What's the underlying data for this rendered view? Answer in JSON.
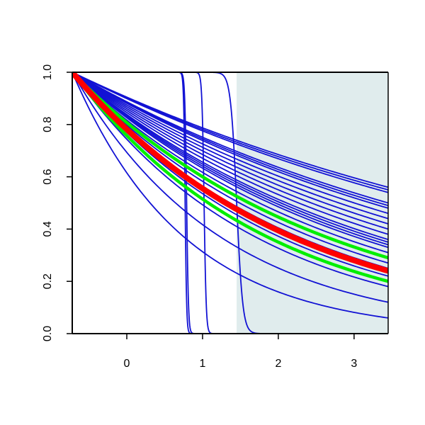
{
  "chart_data": {
    "type": "line",
    "title": "",
    "xlabel": "",
    "ylabel": "",
    "xlim": [
      -0.72,
      3.45
    ],
    "ylim": [
      0,
      1
    ],
    "x_ticks": [
      0,
      1,
      2,
      3
    ],
    "x_tick_labels": [
      "0",
      "1",
      "2",
      "3"
    ],
    "y_ticks": [
      0,
      0.2,
      0.4,
      0.6,
      0.8,
      1
    ],
    "y_tick_labels": [
      "0.0",
      "0.2",
      "0.4",
      "0.6",
      "0.8",
      "1.0"
    ],
    "grid": false,
    "shaded_region": {
      "x_from": 1.45,
      "x_to": 3.45,
      "color": "#e0eced"
    },
    "curve_start": {
      "x": -0.72,
      "y": 1
    },
    "colors": {
      "background": "#ffffff",
      "axis": "#000000",
      "curves": "#1212d4",
      "upper_band": "#00ee00",
      "lower_band": "#00ee00",
      "center": "#ff0000"
    },
    "series": [
      {
        "kind": "exp",
        "end_y": 0.56,
        "role": "curve"
      },
      {
        "kind": "exp",
        "end_y": 0.55,
        "role": "curve"
      },
      {
        "kind": "exp",
        "end_y": 0.54,
        "role": "curve"
      },
      {
        "kind": "exp",
        "end_y": 0.5,
        "role": "curve"
      },
      {
        "kind": "exp",
        "end_y": 0.49,
        "role": "curve"
      },
      {
        "kind": "exp",
        "end_y": 0.48,
        "role": "curve"
      },
      {
        "kind": "exp",
        "end_y": 0.46,
        "role": "curve"
      },
      {
        "kind": "exp",
        "end_y": 0.44,
        "role": "curve"
      },
      {
        "kind": "exp",
        "end_y": 0.42,
        "role": "curve"
      },
      {
        "kind": "exp",
        "end_y": 0.4,
        "role": "curve"
      },
      {
        "kind": "exp",
        "end_y": 0.38,
        "role": "curve"
      },
      {
        "kind": "exp",
        "end_y": 0.36,
        "role": "curve"
      },
      {
        "kind": "exp",
        "end_y": 0.35,
        "role": "curve"
      },
      {
        "kind": "exp",
        "end_y": 0.34,
        "role": "curve"
      },
      {
        "kind": "exp",
        "end_y": 0.33,
        "role": "curve"
      },
      {
        "kind": "exp",
        "end_y": 0.31,
        "role": "curve"
      },
      {
        "kind": "exp",
        "end_y": 0.27,
        "role": "curve"
      },
      {
        "kind": "exp",
        "end_y": 0.25,
        "role": "curve"
      },
      {
        "kind": "exp",
        "end_y": 0.24,
        "role": "curve"
      },
      {
        "kind": "exp",
        "end_y": 0.22,
        "role": "curve"
      },
      {
        "kind": "exp",
        "end_y": 0.18,
        "role": "curve"
      },
      {
        "kind": "exp",
        "end_y": 0.12,
        "role": "curve"
      },
      {
        "kind": "exp",
        "end_y": 0.06,
        "role": "curve"
      },
      {
        "kind": "exp",
        "end_y": 0.29,
        "role": "upper_band"
      },
      {
        "kind": "exp",
        "end_y": 0.2,
        "role": "lower_band"
      },
      {
        "kind": "exp",
        "end_y": 0.24,
        "role": "center"
      },
      {
        "kind": "step",
        "cut_x": 0.77,
        "sharpness": 0.01,
        "role": "curve"
      },
      {
        "kind": "step",
        "cut_x": 0.79,
        "sharpness": 0.012,
        "role": "curve"
      },
      {
        "kind": "step",
        "cut_x": 1.02,
        "sharpness": 0.014,
        "role": "curve"
      },
      {
        "kind": "step",
        "cut_x": 1.45,
        "sharpness": 0.04,
        "role": "curve"
      }
    ]
  }
}
